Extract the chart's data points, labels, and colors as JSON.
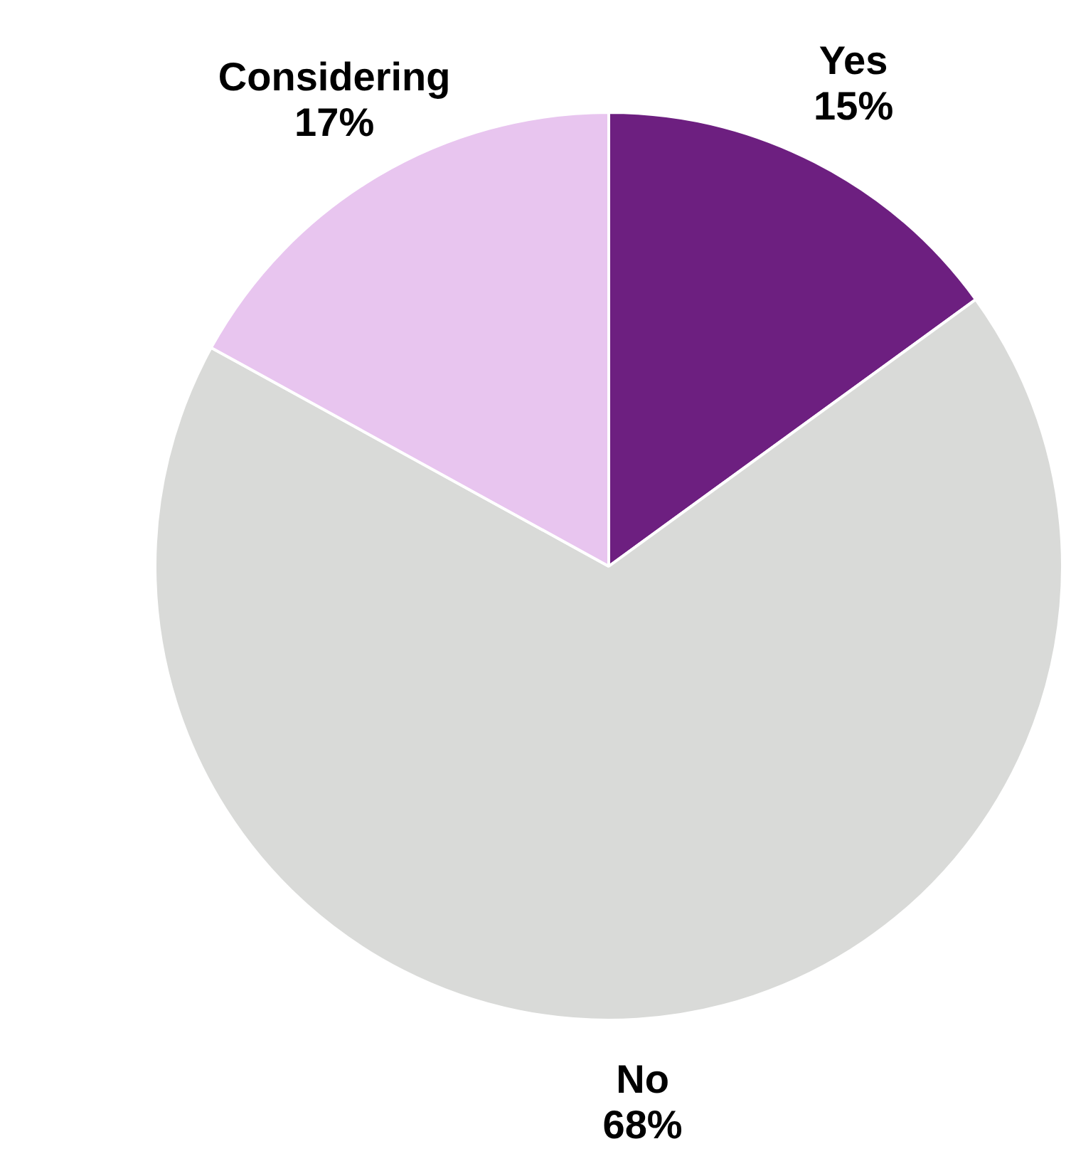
{
  "chart_data": {
    "type": "pie",
    "categories": [
      "Yes",
      "No",
      "Considering"
    ],
    "values": [
      15,
      68,
      17
    ],
    "colors": [
      "#6d1f80",
      "#d9dad8",
      "#e8c5ef"
    ],
    "value_labels": [
      "15%",
      "68%",
      "17%"
    ],
    "legend": false
  }
}
